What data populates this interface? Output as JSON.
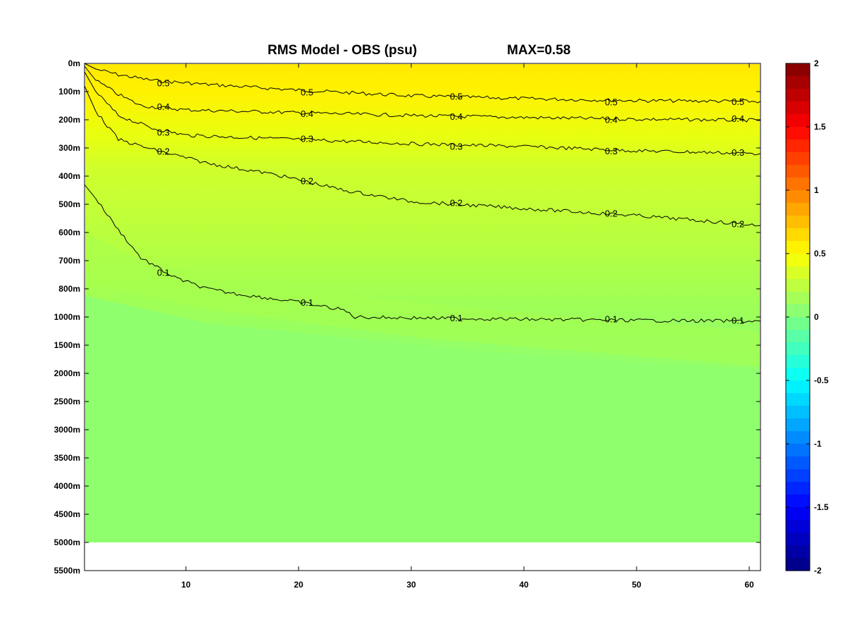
{
  "chart_data": {
    "type": "heatmap",
    "title": "RMS Model - OBS (psu)",
    "annotation": "MAX=0.58",
    "x_ticks": [
      10,
      20,
      30,
      40,
      50,
      60
    ],
    "xlim": [
      1,
      61
    ],
    "y_tick_labels": [
      "0m",
      "100m",
      "200m",
      "300m",
      "400m",
      "500m",
      "600m",
      "700m",
      "800m",
      "1000m",
      "1500m",
      "2000m",
      "2500m",
      "3000m",
      "3500m",
      "4000m",
      "4500m",
      "5000m",
      "5500m"
    ],
    "data_bottom_depth_label": "5000m",
    "colorbar": {
      "range": [
        -2,
        2
      ],
      "ticks": [
        2,
        1.5,
        1,
        0.5,
        0,
        -0.5,
        -1,
        -1.5,
        -2
      ],
      "tick_labels": [
        "2",
        "1.5",
        "1",
        "0.5",
        "0",
        "-0.5",
        "-1",
        "-1.5",
        "-2"
      ],
      "colormap": "jet",
      "levels": 40
    },
    "contours": [
      {
        "level": 0.5,
        "label": "0.5",
        "depth_profile": [
          [
            1,
            0
          ],
          [
            2,
            20
          ],
          [
            4,
            40
          ],
          [
            7,
            60
          ],
          [
            12,
            75
          ],
          [
            20,
            95
          ],
          [
            30,
            115
          ],
          [
            40,
            125
          ],
          [
            50,
            132
          ],
          [
            61,
            135
          ]
        ]
      },
      {
        "level": 0.4,
        "label": "0.4",
        "depth_profile": [
          [
            1,
            10
          ],
          [
            2,
            60
          ],
          [
            4,
            110
          ],
          [
            6,
            150
          ],
          [
            10,
            165
          ],
          [
            20,
            175
          ],
          [
            30,
            185
          ],
          [
            40,
            192
          ],
          [
            50,
            198
          ],
          [
            61,
            202
          ]
        ]
      },
      {
        "level": 0.3,
        "label": "0.3",
        "depth_profile": [
          [
            1,
            30
          ],
          [
            2,
            100
          ],
          [
            4,
            185
          ],
          [
            7,
            230
          ],
          [
            10,
            255
          ],
          [
            20,
            270
          ],
          [
            30,
            285
          ],
          [
            40,
            295
          ],
          [
            50,
            310
          ],
          [
            61,
            320
          ]
        ]
      },
      {
        "level": 0.2,
        "label": "0.2",
        "depth_profile": [
          [
            1,
            80
          ],
          [
            2,
            170
          ],
          [
            4,
            270
          ],
          [
            7,
            305
          ],
          [
            12,
            355
          ],
          [
            18,
            395
          ],
          [
            24,
            450
          ],
          [
            30,
            490
          ],
          [
            40,
            515
          ],
          [
            50,
            540
          ],
          [
            61,
            575
          ]
        ]
      },
      {
        "level": 0.1,
        "label": "0.1",
        "depth_profile": [
          [
            1,
            430
          ],
          [
            2,
            480
          ],
          [
            4,
            590
          ],
          [
            6,
            690
          ],
          [
            9,
            760
          ],
          [
            14,
            830
          ],
          [
            20,
            895
          ],
          [
            24,
            950
          ],
          [
            25,
            1000
          ],
          [
            30,
            1015
          ],
          [
            40,
            1040
          ],
          [
            50,
            1060
          ],
          [
            61,
            1075
          ]
        ]
      }
    ],
    "colors": {
      "surface": "#ffe900",
      "shallow": "#f0f000",
      "mid": "#c8ff32",
      "deep": "#a6ff4d",
      "abyss": "#8fff6e",
      "missing": "#ffffff",
      "contour": "#000000"
    }
  }
}
